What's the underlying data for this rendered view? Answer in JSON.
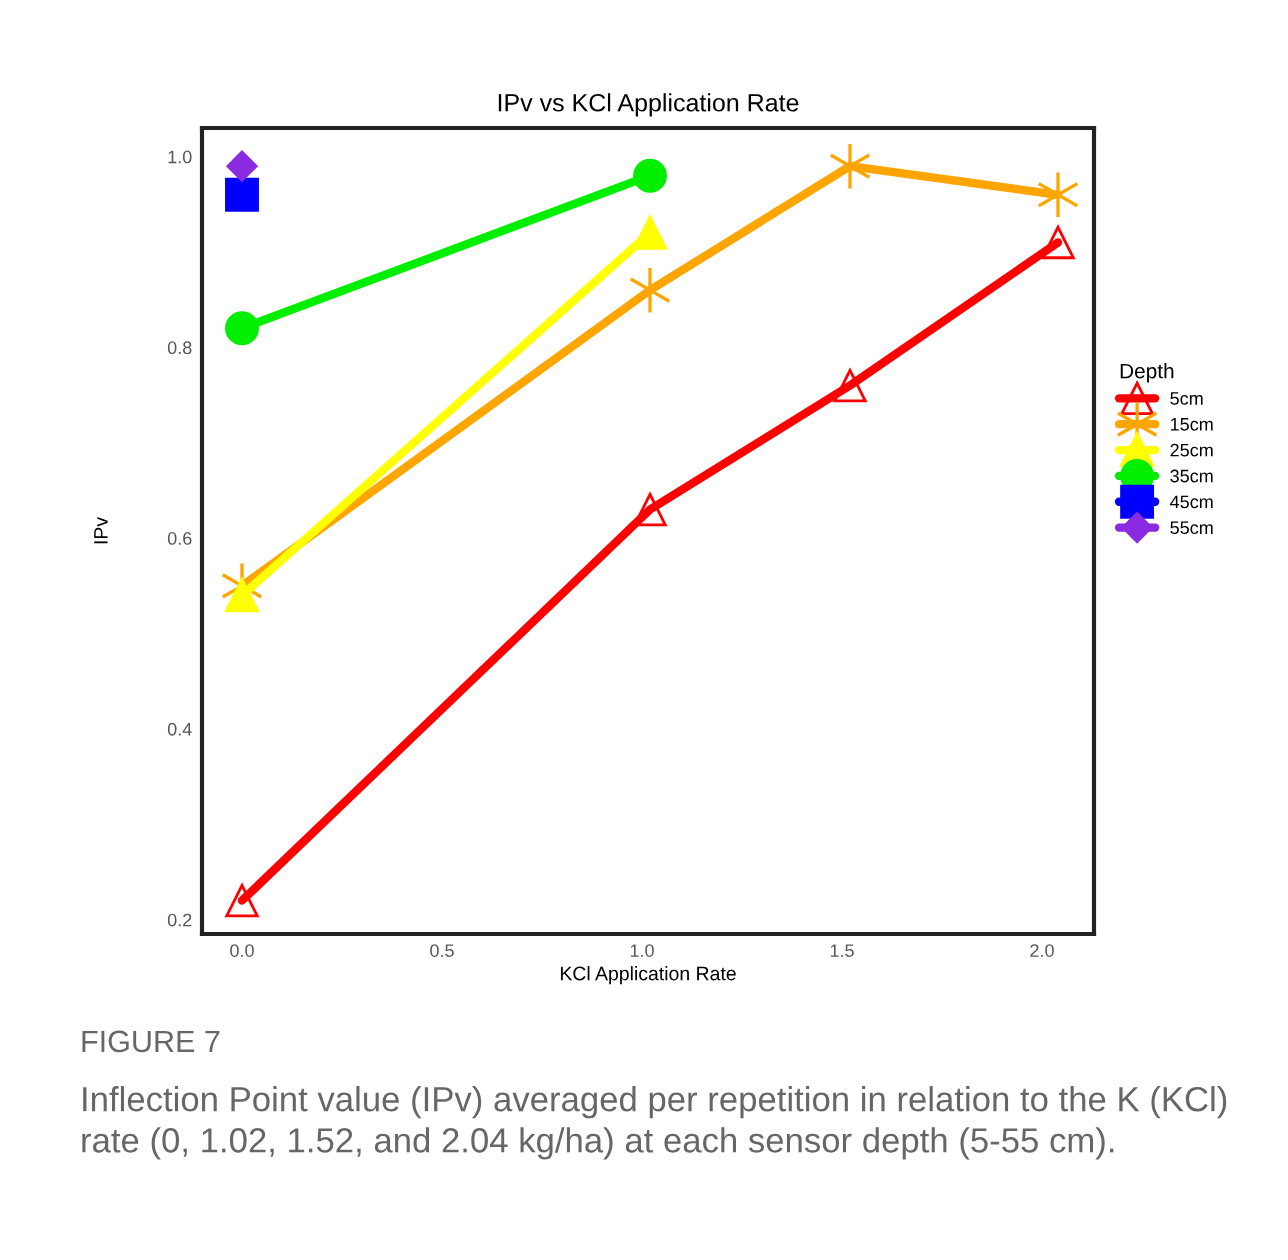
{
  "chart_data": {
    "type": "line",
    "title": "IPv vs KCl Application Rate",
    "xlabel": "KCl Application Rate",
    "ylabel": "IPv",
    "legend_title": "Depth",
    "legend": "right",
    "xlim": [
      -0.1,
      2.13
    ],
    "xticks": [
      {
        "value": 0,
        "label": "0.0"
      },
      {
        "value": 0.5,
        "label": "0.5"
      },
      {
        "value": 1,
        "label": "1.0"
      },
      {
        "value": 1.5,
        "label": "1.5"
      },
      {
        "value": 2,
        "label": "2.0"
      }
    ],
    "ylim": [
      0.185,
      1.03
    ],
    "yticks": [
      0.2,
      0.4,
      0.6,
      0.8,
      {
        "value": 1,
        "label": "1.0"
      }
    ],
    "grid": false,
    "line_style": "solid",
    "series": [
      {
        "name": "5cm",
        "color": "#ff0000",
        "marker": "triangle",
        "x": [
          0,
          1.02,
          1.52,
          2.04
        ],
        "values": [
          0.22,
          0.63,
          0.76,
          0.91
        ]
      },
      {
        "name": "15cm",
        "color": "#ffa500",
        "marker": "cross",
        "x": [
          0,
          1.02,
          1.52,
          2.04
        ],
        "values": [
          0.55,
          0.86,
          0.99,
          0.96
        ]
      },
      {
        "name": "25cm",
        "color": "#ffff00",
        "marker": "triangle",
        "x": [
          0,
          1.02
        ],
        "values": [
          0.54,
          0.92
        ]
      },
      {
        "name": "35cm",
        "color": "#00ee00",
        "marker": "circle",
        "x": [
          0,
          1.02
        ],
        "values": [
          0.82,
          0.98
        ]
      },
      {
        "name": "45cm",
        "color": "#0000ff",
        "marker": "square",
        "x": [
          0
        ],
        "values": [
          0.96
        ]
      },
      {
        "name": "55cm",
        "color": "#8a2be2",
        "marker": "diamond",
        "x": [
          0
        ],
        "values": [
          0.99
        ]
      }
    ],
    "annotations": [
      "FIGURE 7",
      "Inflection Point value (IPv) averaged per repetition in relation to the K (KCl) rate (0, 1.02, 1.52, and 2.04 kg/ha) at each sensor depth (5-55 cm)."
    ]
  }
}
